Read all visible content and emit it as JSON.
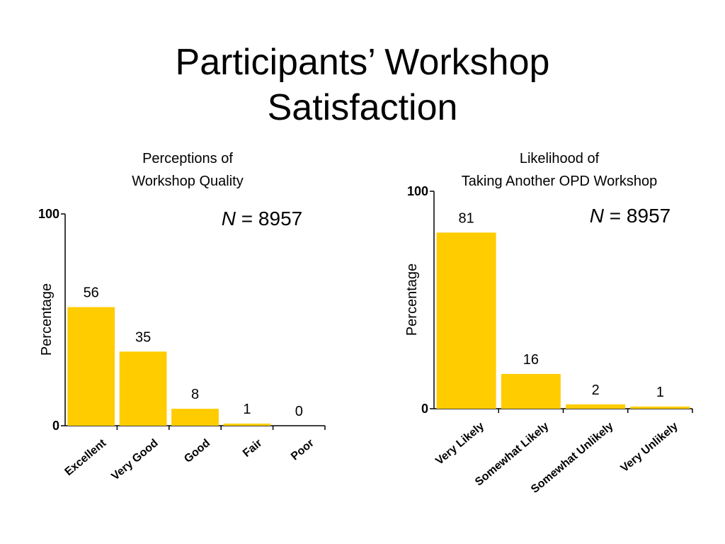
{
  "slide": {
    "title_lines": [
      "Participants’ Workshop",
      "Satisfaction"
    ],
    "bar_color": "#FFCC00"
  },
  "chart_data": [
    {
      "type": "bar",
      "title_lines": [
        "Perceptions of",
        "Workshop Quality"
      ],
      "n_label": {
        "italic": "N",
        "text": " = 8957"
      },
      "ylabel": "Percentage",
      "ylim": [
        0,
        100
      ],
      "yticks": [
        "0",
        "100"
      ],
      "categories": [
        "Excellent",
        "Very Good",
        "Good",
        "Fair",
        "Poor"
      ],
      "values": [
        56,
        35,
        8,
        1,
        0
      ],
      "value_labels": [
        "56",
        "35",
        "8",
        "1",
        "0"
      ]
    },
    {
      "type": "bar",
      "title_lines": [
        "Likelihood of",
        "Taking Another OPD Workshop"
      ],
      "n_label": {
        "italic": "N",
        "text": " = 8957"
      },
      "ylabel": "Percentage",
      "ylim": [
        0,
        100
      ],
      "yticks": [
        "0",
        "100"
      ],
      "categories": [
        "Very Likely",
        "Somewhat Likely",
        "Somewhat Unlikely",
        "Very Unlikely"
      ],
      "values": [
        81,
        16,
        2,
        1
      ],
      "value_labels": [
        "81",
        "16",
        "2",
        "1"
      ]
    }
  ]
}
